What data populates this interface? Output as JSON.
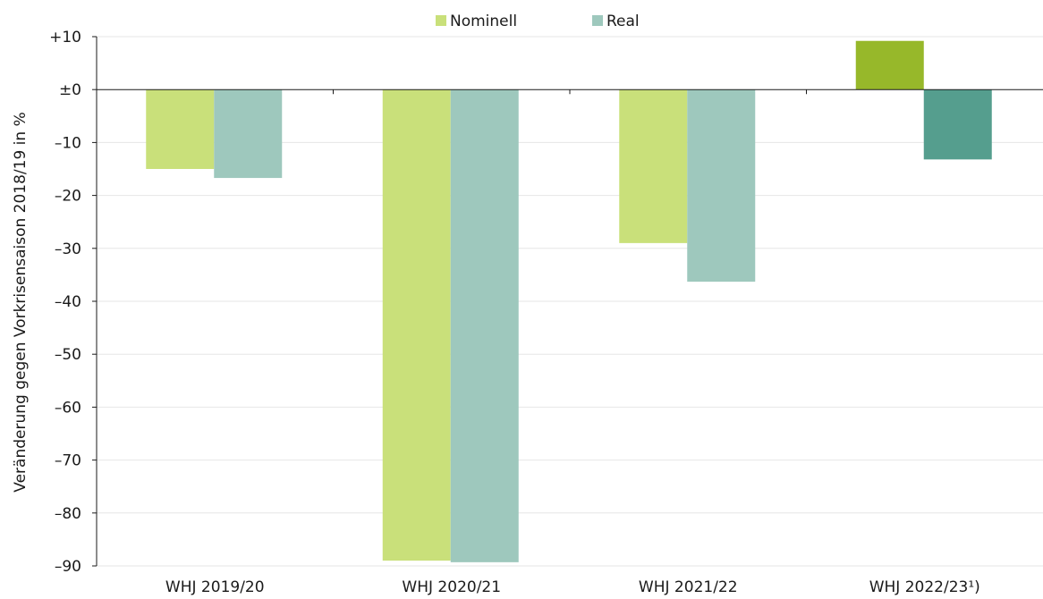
{
  "chart_data": {
    "type": "bar",
    "categories": [
      "WHJ 2019/20",
      "WHJ 2020/21",
      "WHJ 2021/22",
      "WHJ 2022/23¹)"
    ],
    "series": [
      {
        "name": "Nominell",
        "values": [
          -15.0,
          -89.0,
          -29.0,
          9.2
        ],
        "colors": [
          "#c9e07a",
          "#c9e07a",
          "#c9e07a",
          "#97b82a"
        ]
      },
      {
        "name": "Real",
        "values": [
          -16.7,
          -89.3,
          -36.3,
          -13.2
        ],
        "colors": [
          "#9ec8bd",
          "#9ec8bd",
          "#9ec8bd",
          "#559e8e"
        ]
      }
    ],
    "ylabel": "Veränderung gegen Vorkrisensaison 2018/19 in %",
    "xlabel": "",
    "ylim": [
      -90,
      10
    ],
    "yticks": [
      10,
      0,
      -10,
      -20,
      -30,
      -40,
      -50,
      -60,
      -70,
      -80,
      -90
    ],
    "ytick_labels": [
      "+10",
      "±0",
      "–10",
      "–20",
      "–30",
      "–40",
      "–50",
      "–60",
      "–70",
      "–80",
      "–90"
    ],
    "grid": true,
    "legend_position": "top-center",
    "legend": [
      {
        "label": "Nominell",
        "color": "#c9e07a"
      },
      {
        "label": "Real",
        "color": "#9ec8bd"
      }
    ]
  }
}
